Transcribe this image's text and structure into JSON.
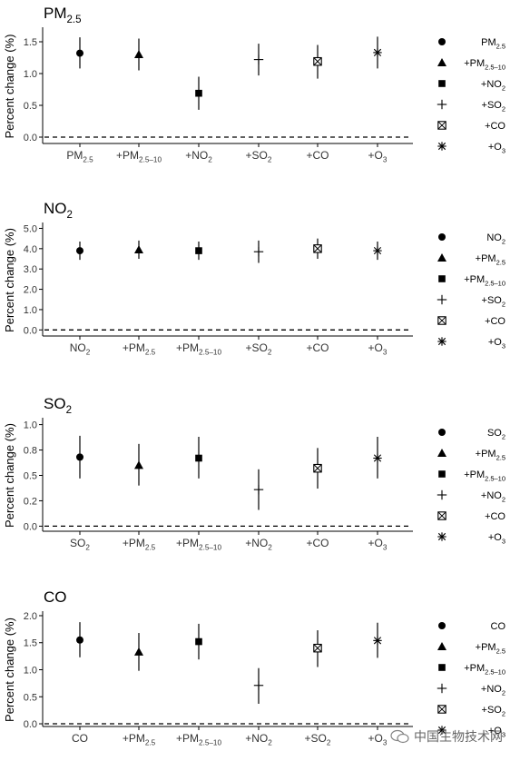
{
  "figure": {
    "ylabel": "Percent change (%)",
    "watermark": "中国生物技术网"
  },
  "chart_data": [
    {
      "type": "scatter",
      "title": {
        "base": "PM",
        "sub": "2.5"
      },
      "ylabel": "Percent change (%)",
      "ylim": [
        -0.1,
        1.7
      ],
      "yticks": [
        "0.0",
        "0.5",
        "1.0",
        "1.5"
      ],
      "reference_line": 0,
      "categories": [
        {
          "label": "PM",
          "sub": "2.5",
          "pre": ""
        },
        {
          "label": "+PM",
          "sub": "2.5–10",
          "pre": ""
        },
        {
          "label": "+NO",
          "sub": "2",
          "pre": ""
        },
        {
          "label": "+SO",
          "sub": "2",
          "pre": ""
        },
        {
          "label": "+CO",
          "sub": "",
          "pre": ""
        },
        {
          "label": "+O",
          "sub": "3",
          "pre": ""
        }
      ],
      "markers": [
        "circle",
        "triangle",
        "square",
        "plus",
        "boxtimes",
        "asterisk"
      ],
      "estimate": [
        1.32,
        1.3,
        0.69,
        1.22,
        1.19,
        1.33
      ],
      "lower": [
        1.08,
        1.05,
        0.43,
        0.97,
        0.92,
        1.08
      ],
      "upper": [
        1.57,
        1.55,
        0.95,
        1.47,
        1.45,
        1.58
      ],
      "legend": [
        {
          "label": "PM",
          "sub": "2.5"
        },
        {
          "label": "+PM",
          "sub": "2.5–10"
        },
        {
          "label": "+NO",
          "sub": "2"
        },
        {
          "label": "+SO",
          "sub": "2"
        },
        {
          "label": "+CO",
          "sub": ""
        },
        {
          "label": "+O",
          "sub": "3"
        }
      ],
      "legend_position": "right",
      "grid": false
    },
    {
      "type": "scatter",
      "title": {
        "base": "NO",
        "sub": "2"
      },
      "ylabel": "Percent change (%)",
      "ylim": [
        -0.3,
        5.2
      ],
      "yticks": [
        "0.0",
        "1.0",
        "2.0",
        "3.0",
        "4.0",
        "5.0"
      ],
      "reference_line": 0,
      "categories": [
        {
          "label": "NO",
          "sub": "2"
        },
        {
          "label": "+PM",
          "sub": "2.5"
        },
        {
          "label": "+PM",
          "sub": "2.5–10"
        },
        {
          "label": "+SO",
          "sub": "2"
        },
        {
          "label": "+CO",
          "sub": ""
        },
        {
          "label": "+O",
          "sub": "3"
        }
      ],
      "markers": [
        "circle",
        "triangle",
        "square",
        "plus",
        "boxtimes",
        "asterisk"
      ],
      "estimate": [
        3.9,
        3.95,
        3.9,
        3.85,
        4.0,
        3.9
      ],
      "lower": [
        3.45,
        3.5,
        3.45,
        3.3,
        3.5,
        3.45
      ],
      "upper": [
        4.35,
        4.4,
        4.35,
        4.4,
        4.5,
        4.35
      ],
      "legend": [
        {
          "label": "NO",
          "sub": "2"
        },
        {
          "label": "+PM",
          "sub": "2.5"
        },
        {
          "label": "+PM",
          "sub": "2.5–10"
        },
        {
          "label": "+SO",
          "sub": "2"
        },
        {
          "label": "+CO",
          "sub": ""
        },
        {
          "label": "+O",
          "sub": "3"
        }
      ],
      "legend_position": "right",
      "grid": false
    },
    {
      "type": "scatter",
      "title": {
        "base": "SO",
        "sub": "2"
      },
      "ylabel": "Percent change (%)",
      "ylim": [
        -0.05,
        1.05
      ],
      "yticks": [
        "0.0",
        "0.2",
        "0.5",
        "0.8",
        "1.0"
      ],
      "ytick_values": [
        0.0,
        0.25,
        0.5,
        0.75,
        1.0
      ],
      "reference_line": 0,
      "categories": [
        {
          "label": "SO",
          "sub": "2"
        },
        {
          "label": "+PM",
          "sub": "2.5"
        },
        {
          "label": "+PM",
          "sub": "2.5–10"
        },
        {
          "label": "+NO",
          "sub": "2"
        },
        {
          "label": "+CO",
          "sub": ""
        },
        {
          "label": "+O",
          "sub": "3"
        }
      ],
      "markers": [
        "circle",
        "triangle",
        "square",
        "plus",
        "boxtimes",
        "asterisk"
      ],
      "estimate": [
        0.68,
        0.6,
        0.67,
        0.36,
        0.57,
        0.67
      ],
      "lower": [
        0.47,
        0.4,
        0.47,
        0.16,
        0.37,
        0.47
      ],
      "upper": [
        0.89,
        0.81,
        0.88,
        0.56,
        0.77,
        0.88
      ],
      "legend": [
        {
          "label": "SO",
          "sub": "2"
        },
        {
          "label": "+PM",
          "sub": "2.5"
        },
        {
          "label": "+PM",
          "sub": "2.5–10"
        },
        {
          "label": "+NO",
          "sub": "2"
        },
        {
          "label": "+CO",
          "sub": ""
        },
        {
          "label": "+O",
          "sub": "3"
        }
      ],
      "legend_position": "right",
      "grid": false
    },
    {
      "type": "scatter",
      "title": {
        "base": "CO",
        "sub": ""
      },
      "ylabel": "Percent change (%)",
      "ylim": [
        -0.05,
        2.05
      ],
      "yticks": [
        "0.0",
        "0.5",
        "1.0",
        "1.5",
        "2.0"
      ],
      "reference_line": 0,
      "categories": [
        {
          "label": "CO",
          "sub": ""
        },
        {
          "label": "+PM",
          "sub": "2.5"
        },
        {
          "label": "+PM",
          "sub": "2.5–10"
        },
        {
          "label": "+NO",
          "sub": "2"
        },
        {
          "label": "+SO",
          "sub": "2"
        },
        {
          "label": "+O",
          "sub": "3"
        }
      ],
      "markers": [
        "circle",
        "triangle",
        "square",
        "plus",
        "boxtimes",
        "asterisk"
      ],
      "estimate": [
        1.55,
        1.33,
        1.52,
        0.71,
        1.4,
        1.54
      ],
      "lower": [
        1.23,
        0.98,
        1.19,
        0.37,
        1.05,
        1.22
      ],
      "upper": [
        1.88,
        1.68,
        1.85,
        1.03,
        1.73,
        1.87
      ],
      "legend": [
        {
          "label": "CO",
          "sub": ""
        },
        {
          "label": "+PM",
          "sub": "2.5"
        },
        {
          "label": "+PM",
          "sub": "2.5–10"
        },
        {
          "label": "+NO",
          "sub": "2"
        },
        {
          "label": "+SO",
          "sub": "2"
        },
        {
          "label": "+O",
          "sub": "3"
        }
      ],
      "legend_position": "right",
      "grid": false
    }
  ]
}
